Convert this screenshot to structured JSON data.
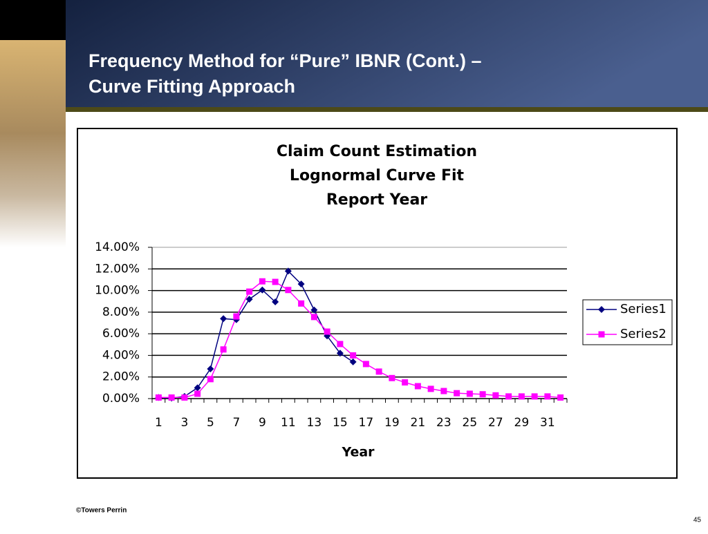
{
  "slide": {
    "title": [
      "Frequency Method for “Pure” IBNR (Cont.) –",
      "Curve Fitting Approach"
    ],
    "footer": "©Towers Perrin",
    "page_number": "45"
  },
  "chart_data": {
    "type": "line",
    "title": [
      "Claim Count Estimation",
      "Lognormal Curve Fit",
      "Report Year"
    ],
    "x_label": "Year",
    "categories": [
      "1",
      null,
      "3",
      null,
      "5",
      null,
      "7",
      null,
      "9",
      null,
      "11",
      null,
      "13",
      null,
      "15",
      null,
      "17",
      null,
      "19",
      null,
      "21",
      null,
      "23",
      null,
      "25",
      null,
      "27",
      null,
      "29",
      null,
      "31",
      null
    ],
    "series": [
      {
        "name": "Series1",
        "color": "#000080",
        "marker": "diamond",
        "values": [
          0.1,
          0.05,
          0.2,
          1.0,
          2.75,
          7.4,
          7.3,
          9.2,
          10.05,
          8.95,
          11.8,
          10.6,
          8.2,
          5.8,
          4.2,
          3.4,
          null,
          null,
          null,
          null,
          null,
          null,
          null,
          null,
          null,
          null,
          null,
          null,
          null,
          null,
          null,
          null
        ]
      },
      {
        "name": "Series2",
        "color": "#ff00ff",
        "marker": "square",
        "values": [
          0.1,
          0.1,
          0.1,
          0.45,
          1.8,
          4.55,
          7.6,
          9.9,
          10.85,
          10.8,
          10.05,
          8.8,
          7.55,
          6.2,
          5.05,
          4.0,
          3.2,
          2.5,
          1.9,
          1.5,
          1.15,
          0.9,
          0.7,
          0.5,
          0.45,
          0.4,
          0.3,
          0.2,
          0.2,
          0.2,
          0.2,
          0.1
        ]
      }
    ],
    "ylim": [
      0,
      14
    ],
    "yticks": [
      {
        "value": 0,
        "label": "0.00%"
      },
      {
        "value": 2,
        "label": "2.00%"
      },
      {
        "value": 4,
        "label": "4.00%"
      },
      {
        "value": 6,
        "label": "6.00%"
      },
      {
        "value": 8,
        "label": "8.00%"
      },
      {
        "value": 10,
        "label": "10.00%"
      },
      {
        "value": 12,
        "label": "12.00%"
      },
      {
        "value": 14,
        "label": "14.00%"
      }
    ],
    "grid": true,
    "legend": "right"
  }
}
